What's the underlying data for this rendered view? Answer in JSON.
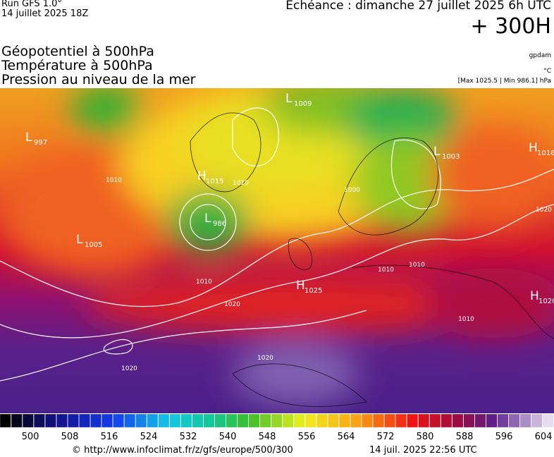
{
  "header": {
    "run": "Run GFS 1.0°",
    "run_date": "14 juillet 2025 18Z",
    "valid": "Echéance : dimanche 27 juillet 2025 6h UTC",
    "lead": "+ 300H",
    "fields": [
      "Géopotentiel à 500hPa",
      "Température à 500hPa",
      "Pression au niveau de la mer"
    ],
    "units": [
      "gpdam",
      "°C"
    ],
    "range": "[Max 1025.5 | Min 986.1] hPa"
  },
  "centers": [
    {
      "letter": "L",
      "value": 997
    },
    {
      "letter": "L",
      "value": 1005
    },
    {
      "letter": "H",
      "value": 1015
    },
    {
      "letter": "L",
      "value": 986
    },
    {
      "letter": "L",
      "value": 1009
    },
    {
      "letter": "H",
      "value": 1025
    },
    {
      "letter": "L",
      "value": 1003
    },
    {
      "letter": "H",
      "value": 1016
    },
    {
      "letter": "H",
      "value": 1020
    }
  ],
  "contour_labels": [
    1010,
    1010,
    1010,
    1020,
    1020,
    1020,
    1010,
    1000,
    1010,
    1010,
    1020
  ],
  "colorbar": {
    "labels": [
      500,
      508,
      516,
      524,
      532,
      540,
      548,
      556,
      564,
      572,
      580,
      588,
      596,
      604
    ]
  },
  "footer": {
    "source": "© http://www.infoclimat.fr/z/gfs/europe/500/300",
    "timestamp": "14 juil. 2025 22:56 UTC"
  }
}
